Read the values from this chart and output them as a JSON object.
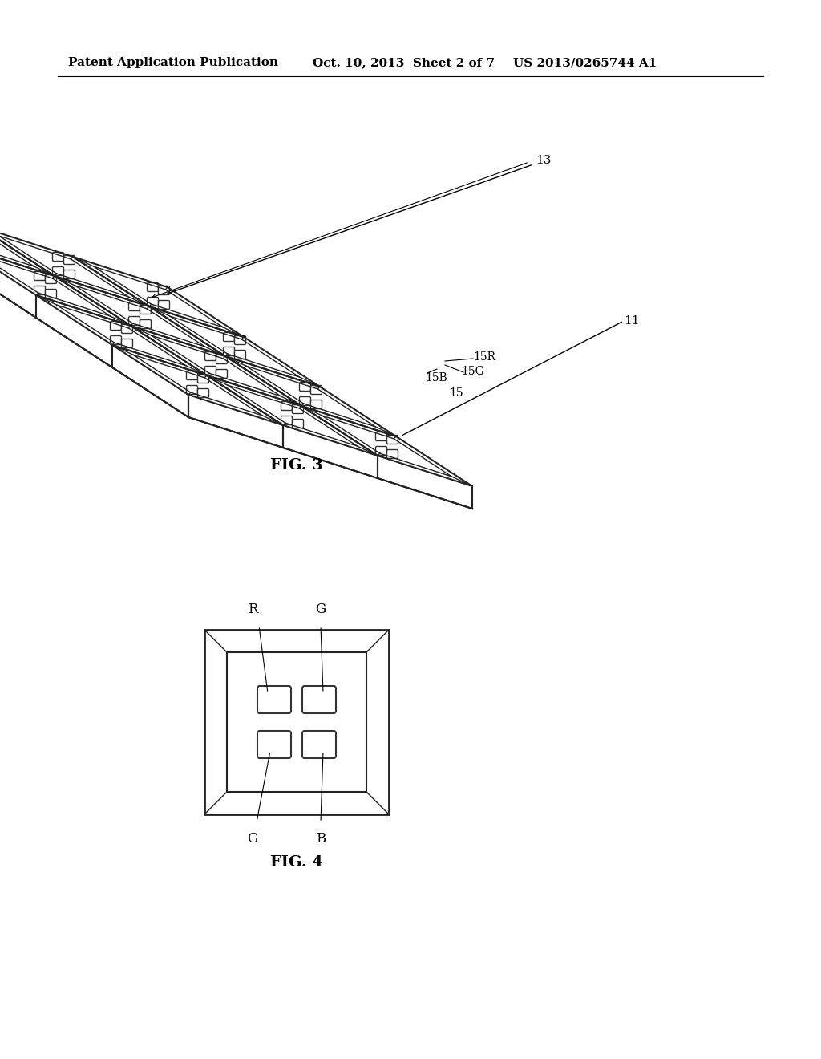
{
  "bg_color": "#ffffff",
  "header_text": "Patent Application Publication",
  "header_date": "Oct. 10, 2013  Sheet 2 of 7",
  "header_patent": "US 2013/0265744 A1",
  "fig3_label": "FIG. 3",
  "fig4_label": "FIG. 4",
  "label_13": "13",
  "label_11": "11",
  "label_15R": "15R",
  "label_15G": "15G",
  "label_15B": "15B",
  "label_15": "15",
  "label_R": "R",
  "label_G_top": "G",
  "label_G_bot": "G",
  "label_B": "B"
}
